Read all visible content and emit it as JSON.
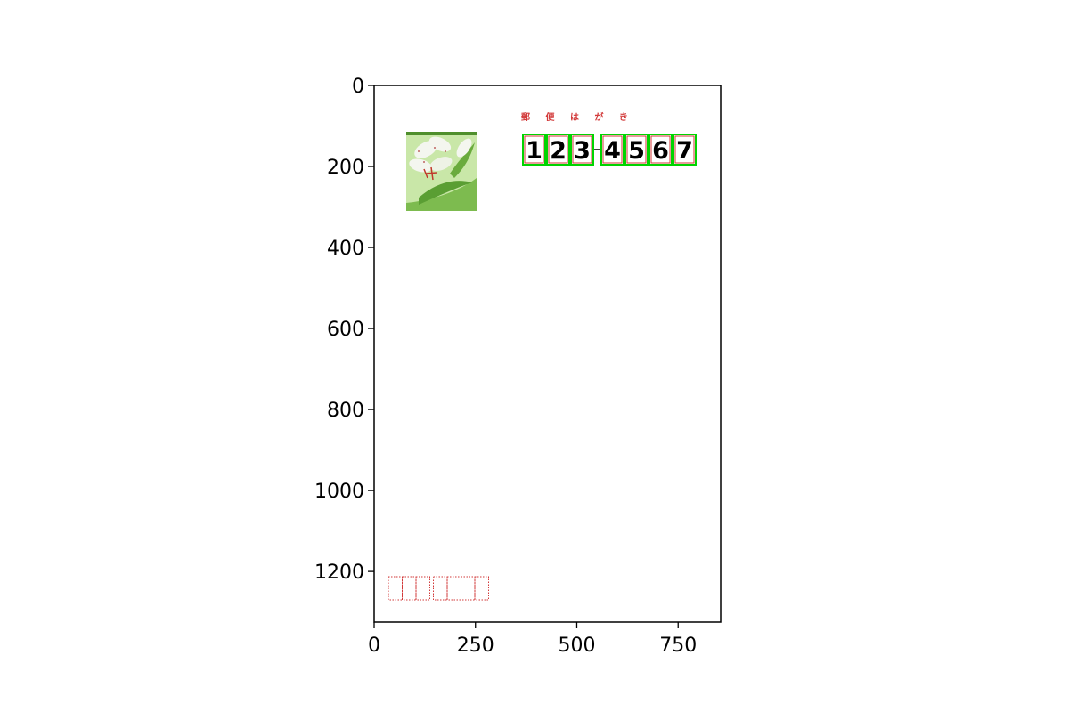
{
  "chart_data": {
    "type": "image",
    "title": "",
    "xlabel": "",
    "ylabel": "",
    "xlim": [
      0,
      855
    ],
    "ylim": [
      1325,
      0
    ],
    "y_inverted": true,
    "xticks": [
      0,
      250,
      500,
      750
    ],
    "yticks": [
      0,
      200,
      400,
      600,
      800,
      1000,
      1200
    ],
    "grid": false,
    "image": {
      "description": "Japanese postcard (hagaki) with postal code digit boxes highlighted",
      "header_text": "郵 便 は が き",
      "postal_code": {
        "digits": [
          "1",
          "2",
          "3",
          "4",
          "5",
          "6",
          "7"
        ],
        "separator": "-"
      },
      "detection_boxes_color": "#00d400",
      "digit_boxes_color": "#d23a3a",
      "stamp_colors": {
        "background": "#7dbb4f",
        "light": "#c9e7a8",
        "petal": "#f4f6ef"
      },
      "sender_code_boxes": 7
    }
  }
}
